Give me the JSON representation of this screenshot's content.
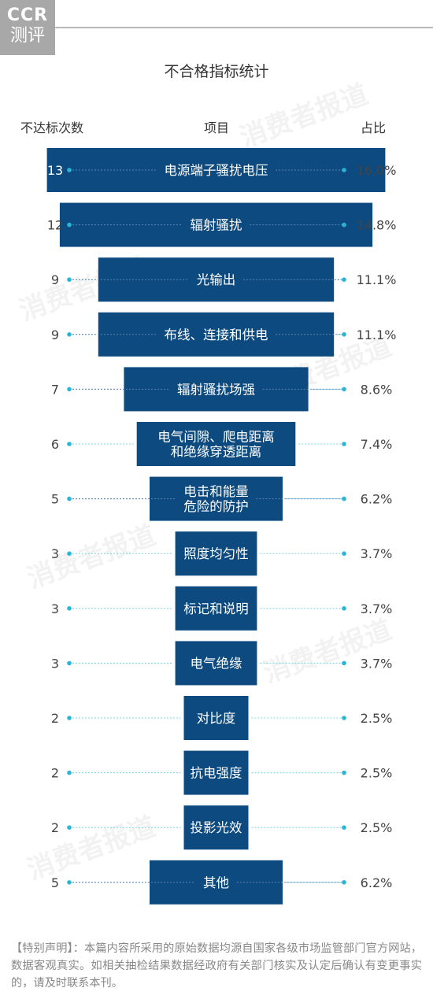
{
  "logo": {
    "line1": "CCR",
    "line2": "测评"
  },
  "watermark": "消费者报道",
  "chart_data": {
    "type": "bar",
    "title": "不合格指标统计",
    "columns": {
      "count": "不达标次数",
      "item": "项目",
      "share": "占比"
    },
    "categories": [
      [
        "电源端子骚扰电压"
      ],
      [
        "辐射骚扰"
      ],
      [
        "光输出"
      ],
      [
        "布线、连接和供电"
      ],
      [
        "辐射骚扰场强"
      ],
      [
        "电气间隙、爬电距离",
        "和绝缘穿透距离"
      ],
      [
        "电击和能量",
        "危险的防护"
      ],
      [
        "照度均匀性"
      ],
      [
        "标记和说明"
      ],
      [
        "电气绝缘"
      ],
      [
        "对比度"
      ],
      [
        "抗电强度"
      ],
      [
        "投影光效"
      ],
      [
        "其他"
      ]
    ],
    "values": [
      13,
      12,
      9,
      9,
      7,
      6,
      5,
      3,
      3,
      3,
      2,
      2,
      2,
      5
    ],
    "percent_labels": [
      "16.0%",
      "14.8%",
      "11.1%",
      "11.1%",
      "8.6%",
      "7.4%",
      "6.2%",
      "3.7%",
      "3.7%",
      "3.7%",
      "2.5%",
      "2.5%",
      "2.5%",
      "6.2%"
    ],
    "colors": {
      "bar": "#0d4a7f",
      "bar_text": "#ffffff",
      "dot": "#29b6d6",
      "leader": "#7fd0e3",
      "label": "#444444"
    }
  },
  "disclaimer": "【特别声明】：本篇内容所采用的原始数据均源自国家各级市场监管部门官方网站，数据客观真实。如相关抽检结果数据经政府有关部门核实及认定后确认有变更事实的，请及时联系本刊。"
}
